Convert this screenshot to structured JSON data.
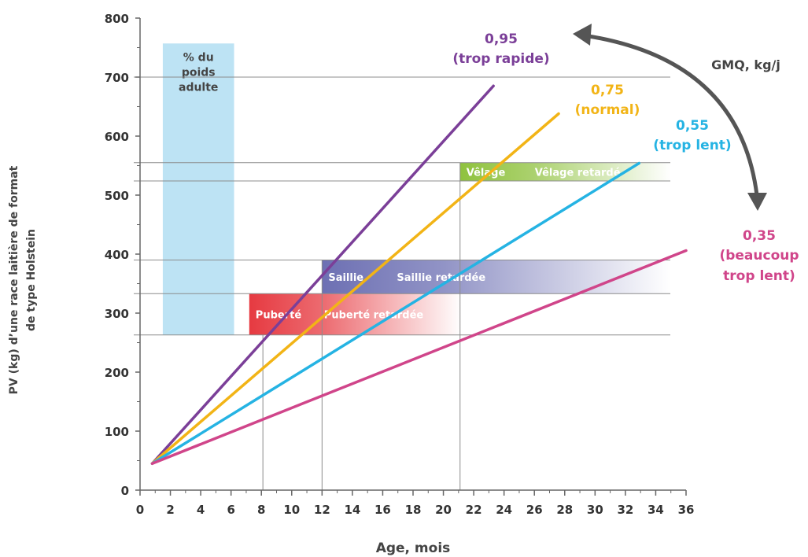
{
  "chart_data": {
    "type": "line",
    "xlabel": "Age, mois",
    "ylabel_lines": [
      "PV (kg) d’une race laitière de format",
      "de type Holstein"
    ],
    "x_ticks": [
      0,
      2,
      4,
      6,
      8,
      10,
      12,
      14,
      16,
      18,
      20,
      22,
      24,
      26,
      28,
      30,
      32,
      34,
      36
    ],
    "y_ticks": [
      0,
      100,
      200,
      300,
      400,
      500,
      600,
      700,
      800
    ],
    "xlim": [
      0,
      36
    ],
    "ylim": [
      0,
      800
    ],
    "grid": "partial horizontal reference lines",
    "series": [
      {
        "label_value": "0,95",
        "label_desc": "(trop rapide)",
        "color": "#7b3f98",
        "x": [
          0.8,
          23.3
        ],
        "y": [
          45,
          685
        ]
      },
      {
        "label_value": "0,75",
        "label_desc": "(normal)",
        "color": "#f2b416",
        "x": [
          0.8,
          27.6
        ],
        "y": [
          45,
          638
        ]
      },
      {
        "label_value": "0,55",
        "label_desc": "(trop lent)",
        "color": "#25b3e3",
        "x": [
          0.8,
          32.9
        ],
        "y": [
          45,
          554
        ]
      },
      {
        "label_value": "0,35",
        "label_desc_lines": [
          "(beaucoup",
          "trop lent)"
        ],
        "color": "#d0458a",
        "x": [
          0.8,
          36.0
        ],
        "y": [
          45,
          406
        ]
      }
    ],
    "gmq_label": "GMQ, kg/j",
    "adult_weight_box": {
      "lines": [
        "% du",
        "poids",
        "adulte"
      ],
      "x": [
        1.5,
        6.2
      ],
      "y": [
        263,
        757
      ],
      "color": "#bde3f4"
    },
    "bands": [
      {
        "label": "Puberté",
        "label_late": "Puberté retardée",
        "x_start": 7.2,
        "x_fade_end": 21.2,
        "y": [
          263,
          333
        ],
        "color": "#e63a41"
      },
      {
        "label": "Saillie",
        "label_late": "Saillie retardée",
        "x_start": 12.0,
        "x_fade_end": 35.0,
        "y": [
          333,
          390
        ],
        "color": "#6d70b3"
      },
      {
        "label": "Vêlage",
        "label_late": "Vêlage retardé",
        "x_start": 21.1,
        "x_fade_end": 35.0,
        "y": [
          524,
          555
        ],
        "color": "#8fc23e"
      }
    ],
    "reference_lines_y": [
      263,
      333,
      390,
      524,
      555,
      700
    ],
    "reference_lines_x": [
      8.1,
      12.0,
      21.1
    ],
    "colors": {
      "axis": "#666666",
      "ref_line": "#8c8c8c",
      "arrow": "#555555",
      "text": "#444444"
    }
  }
}
